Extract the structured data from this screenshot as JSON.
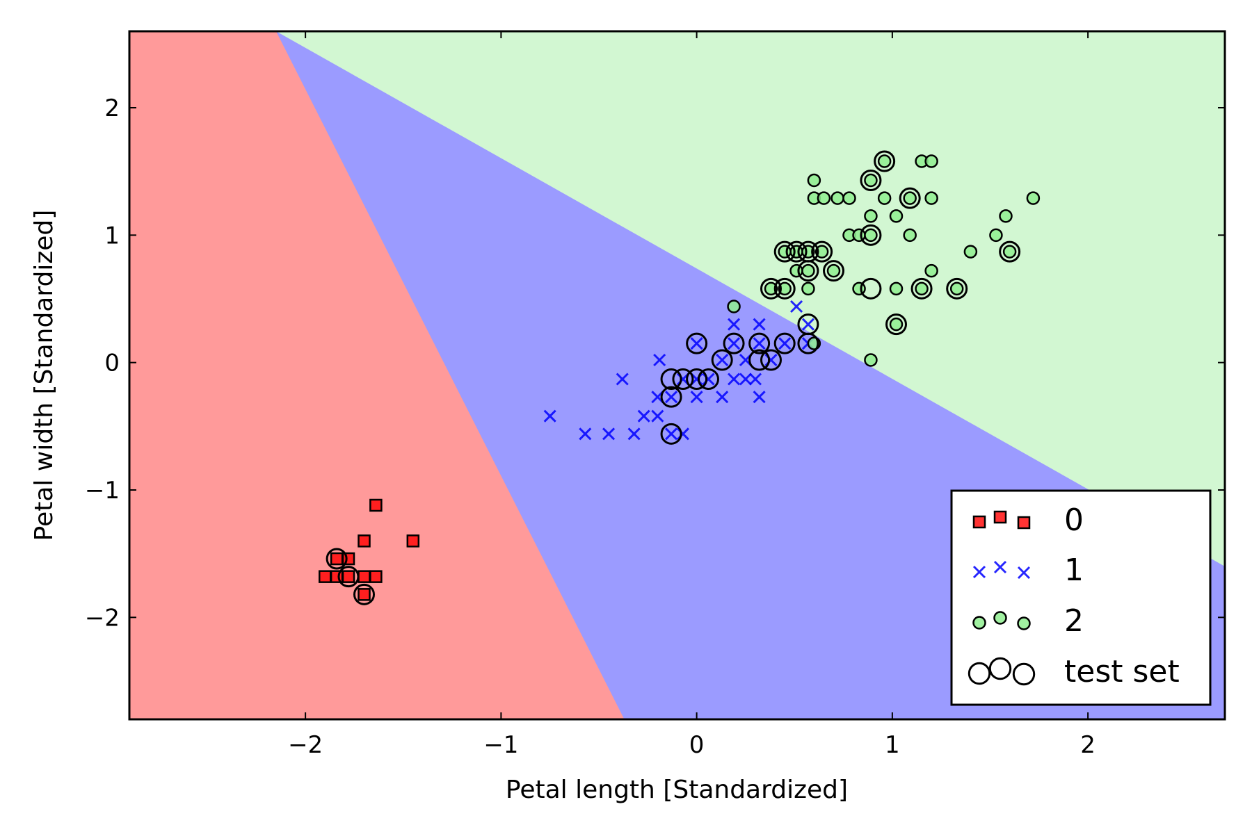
{
  "chart_data": {
    "type": "scatter",
    "title": "",
    "xlabel": "Petal length [Standardized]",
    "ylabel": "Petal width [Standardized]",
    "xlim": [
      -2.9,
      2.7
    ],
    "ylim": [
      -2.8,
      2.6
    ],
    "xticks": [
      -2,
      -1,
      0,
      1,
      2
    ],
    "yticks": [
      -2,
      -1,
      0,
      1,
      2
    ],
    "xtick_labels": [
      "−2",
      "−1",
      "0",
      "1",
      "2"
    ],
    "ytick_labels": [
      "−2",
      "−1",
      "0",
      "1",
      "2"
    ],
    "grid": false,
    "legend_position": "lower-right",
    "colors": {
      "class_0": "#ff0000",
      "class_1": "#0000ff",
      "class_2": "#90ee90",
      "region_0": "#ff9a9a",
      "region_1": "#9b9bff",
      "region_2": "#d2f7d2"
    },
    "decision_regions": {
      "boundary_0_1": [
        [
          -2.15,
          2.6
        ],
        [
          -0.37,
          -2.8
        ]
      ],
      "boundary_1_2": [
        [
          -2.15,
          2.6
        ],
        [
          2.7,
          -1.6
        ]
      ]
    },
    "series": [
      {
        "name": "0",
        "marker": "square",
        "points": [
          [
            -1.64,
            -1.12
          ],
          [
            -1.7,
            -1.4
          ],
          [
            -1.45,
            -1.4
          ],
          [
            -1.84,
            -1.54
          ],
          [
            -1.78,
            -1.54
          ],
          [
            -1.9,
            -1.68
          ],
          [
            -1.84,
            -1.68
          ],
          [
            -1.78,
            -1.68
          ],
          [
            -1.7,
            -1.68
          ],
          [
            -1.64,
            -1.68
          ],
          [
            -1.7,
            -1.82
          ]
        ]
      },
      {
        "name": "1",
        "marker": "x",
        "points": [
          [
            -0.75,
            -0.42
          ],
          [
            -0.57,
            -0.56
          ],
          [
            -0.45,
            -0.56
          ],
          [
            -0.32,
            -0.56
          ],
          [
            -0.38,
            -0.13
          ],
          [
            -0.27,
            -0.42
          ],
          [
            -0.2,
            -0.42
          ],
          [
            -0.2,
            -0.27
          ],
          [
            -0.19,
            0.02
          ],
          [
            -0.13,
            -0.56
          ],
          [
            -0.07,
            -0.56
          ],
          [
            -0.13,
            -0.27
          ],
          [
            -0.07,
            -0.13
          ],
          [
            0.0,
            0.15
          ],
          [
            0.0,
            -0.13
          ],
          [
            0.0,
            -0.27
          ],
          [
            0.06,
            -0.13
          ],
          [
            0.13,
            -0.27
          ],
          [
            0.13,
            0.02
          ],
          [
            0.19,
            0.15
          ],
          [
            0.19,
            0.3
          ],
          [
            0.19,
            -0.13
          ],
          [
            0.25,
            -0.13
          ],
          [
            0.25,
            0.02
          ],
          [
            0.3,
            -0.13
          ],
          [
            0.32,
            0.15
          ],
          [
            0.32,
            0.3
          ],
          [
            0.32,
            -0.27
          ],
          [
            0.38,
            0.02
          ],
          [
            0.45,
            0.15
          ],
          [
            0.51,
            0.44
          ],
          [
            0.57,
            0.3
          ],
          [
            0.57,
            0.15
          ]
        ]
      },
      {
        "name": "2",
        "marker": "circle",
        "points": [
          [
            0.19,
            0.44
          ],
          [
            0.45,
            0.58
          ],
          [
            0.51,
            0.72
          ],
          [
            0.57,
            0.58
          ],
          [
            0.57,
            0.72
          ],
          [
            0.51,
            0.87
          ],
          [
            0.57,
            0.87
          ],
          [
            0.6,
            1.43
          ],
          [
            0.6,
            1.29
          ],
          [
            0.65,
            1.29
          ],
          [
            0.72,
            1.29
          ],
          [
            0.78,
            1.29
          ],
          [
            0.78,
            1.0
          ],
          [
            0.83,
            1.0
          ],
          [
            0.83,
            0.58
          ],
          [
            0.89,
            1.43
          ],
          [
            0.89,
            1.15
          ],
          [
            0.89,
            1.0
          ],
          [
            0.89,
            0.02
          ],
          [
            0.96,
            1.58
          ],
          [
            0.96,
            1.29
          ],
          [
            1.02,
            1.15
          ],
          [
            1.02,
            0.58
          ],
          [
            1.09,
            1.0
          ],
          [
            1.09,
            1.29
          ],
          [
            1.15,
            1.58
          ],
          [
            1.2,
            1.58
          ],
          [
            1.2,
            1.29
          ],
          [
            1.2,
            0.72
          ],
          [
            1.4,
            0.87
          ],
          [
            1.53,
            1.0
          ],
          [
            1.58,
            1.15
          ],
          [
            1.72,
            1.29
          ],
          [
            0.7,
            0.72
          ],
          [
            0.64,
            0.87
          ],
          [
            0.45,
            0.87
          ],
          [
            0.38,
            0.58
          ],
          [
            1.33,
            0.58
          ],
          [
            1.15,
            0.58
          ],
          [
            1.02,
            0.3
          ],
          [
            1.6,
            0.87
          ],
          [
            0.6,
            0.15
          ]
        ]
      },
      {
        "name": "test set",
        "marker": "open-circle",
        "points": [
          [
            -1.84,
            -1.54
          ],
          [
            -1.78,
            -1.68
          ],
          [
            -1.7,
            -1.82
          ],
          [
            -0.13,
            -0.56
          ],
          [
            -0.13,
            -0.27
          ],
          [
            -0.13,
            -0.13
          ],
          [
            -0.07,
            -0.13
          ],
          [
            0.0,
            -0.13
          ],
          [
            0.06,
            -0.13
          ],
          [
            0.0,
            0.15
          ],
          [
            0.13,
            0.02
          ],
          [
            0.19,
            0.15
          ],
          [
            0.32,
            0.15
          ],
          [
            0.32,
            0.02
          ],
          [
            0.38,
            0.02
          ],
          [
            0.45,
            0.15
          ],
          [
            0.57,
            0.15
          ],
          [
            0.57,
            0.3
          ],
          [
            0.38,
            0.58
          ],
          [
            0.45,
            0.58
          ],
          [
            0.45,
            0.87
          ],
          [
            0.51,
            0.87
          ],
          [
            0.57,
            0.87
          ],
          [
            0.64,
            0.87
          ],
          [
            0.57,
            0.72
          ],
          [
            0.7,
            0.72
          ],
          [
            0.89,
            0.58
          ],
          [
            0.89,
            1.0
          ],
          [
            0.89,
            1.43
          ],
          [
            0.96,
            1.58
          ],
          [
            1.09,
            1.29
          ],
          [
            1.15,
            0.58
          ],
          [
            1.02,
            0.3
          ],
          [
            1.33,
            0.58
          ],
          [
            1.6,
            0.87
          ]
        ]
      }
    ]
  }
}
